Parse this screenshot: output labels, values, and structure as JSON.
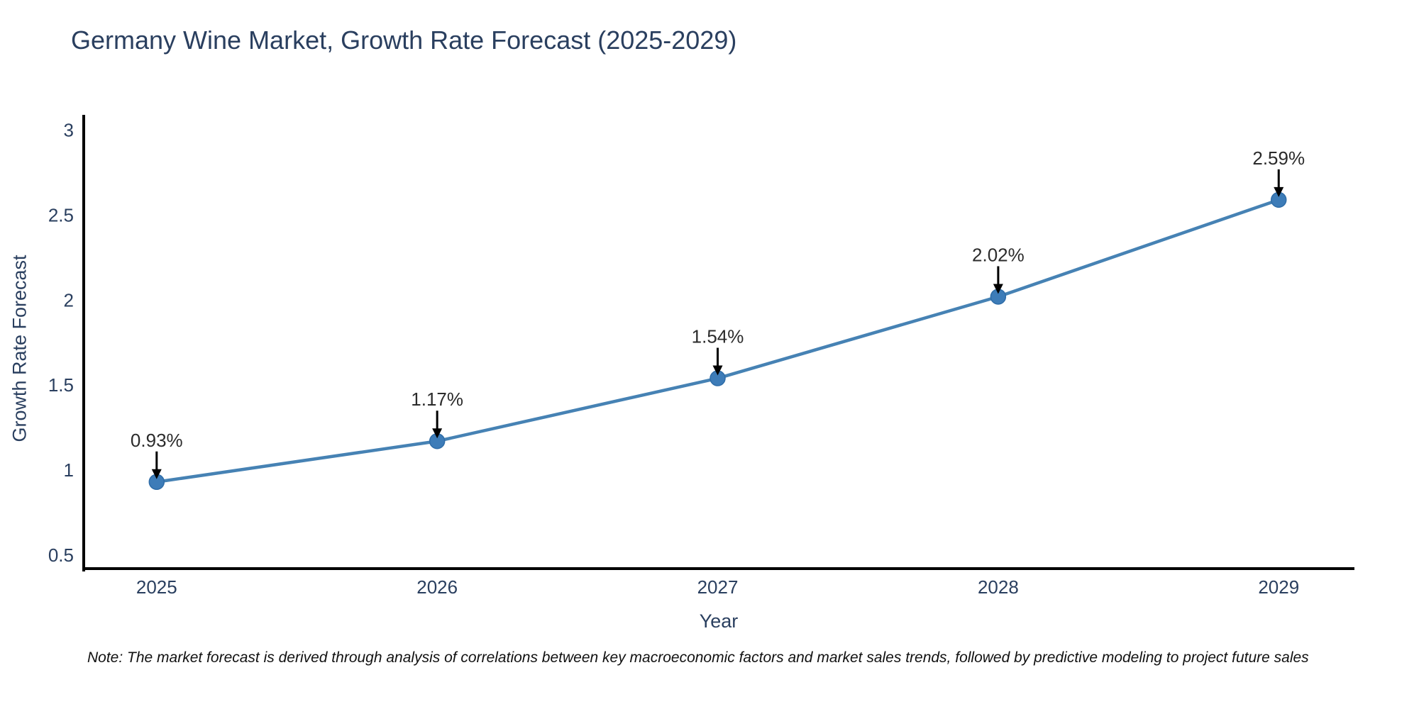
{
  "chart_data": {
    "type": "line",
    "title": "Germany Wine Market, Growth Rate Forecast (2025-2029)",
    "xlabel": "Year",
    "ylabel": "Growth Rate Forecast",
    "x": [
      2025,
      2026,
      2027,
      2028,
      2029
    ],
    "values": [
      0.93,
      1.17,
      1.54,
      2.02,
      2.59
    ],
    "point_labels": [
      "0.93%",
      "1.17%",
      "1.54%",
      "2.02%",
      "2.59%"
    ],
    "x_tick_labels": [
      "2025",
      "2026",
      "2027",
      "2028",
      "2029"
    ],
    "y_ticks": [
      0.5,
      1,
      1.5,
      2,
      2.5,
      3
    ],
    "y_tick_labels": [
      "0.5",
      "1",
      "1.5",
      "2",
      "2.5",
      "3"
    ],
    "xlim": [
      2024.74,
      2029.27
    ],
    "ylim": [
      0.42,
      3.09
    ],
    "grid": false,
    "legend": "none",
    "colors": {
      "line": "#4682b4",
      "marker": "#3d7cb8",
      "marker_edge": "#2f6da8",
      "axis": "#000000",
      "title_text": "#2a3f5f",
      "tick_text": "#2a3f5f",
      "annotation_text": "#2b2b2b",
      "arrow": "#000000",
      "note_text": "#111111"
    }
  },
  "note": {
    "text": "Note: The market forecast is derived through analysis of correlations between key macroeconomic factors and market sales trends, followed by predictive modeling to project future sales"
  }
}
